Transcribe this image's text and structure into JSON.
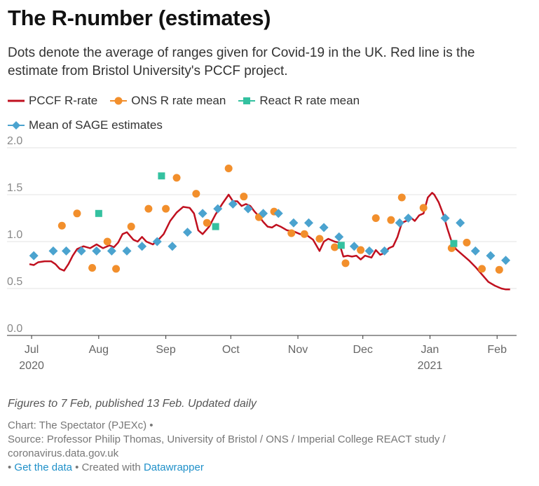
{
  "title": "The R-number (estimates)",
  "subtitle": "Dots denote the average of ranges given for Covid-19 in the UK. Red line is the estimate from Bristol University's PCCF project.",
  "notes": "Figures to 7 Feb, published 13 Feb. Updated daily",
  "footer": {
    "chart_credit": "Chart: The Spectator (PJEXc) •",
    "source": "Source: Professor Philip Thomas, University of Bristol / ONS / Imperial College REACT study / coronavirus.data.gov.uk",
    "bullet1": " • ",
    "get_data": "Get the data",
    "created_with": " • Created with ",
    "datawrapper": "Datawrapper"
  },
  "chart_data": {
    "type": "line",
    "xlim": [
      "2020-06-30",
      "2021-02-10"
    ],
    "ylim": [
      0,
      2.0
    ],
    "grid": true,
    "legend_position": "top",
    "y_ticks": [
      "0.0",
      "0.5",
      "1.0",
      "1.5",
      "2.0"
    ],
    "x_ticks": [
      {
        "date": "2020-07-01",
        "label": "Jul",
        "sublabel": "2020"
      },
      {
        "date": "2020-08-01",
        "label": "Aug",
        "sublabel": ""
      },
      {
        "date": "2020-09-01",
        "label": "Sep",
        "sublabel": ""
      },
      {
        "date": "2020-10-01",
        "label": "Oct",
        "sublabel": ""
      },
      {
        "date": "2020-11-01",
        "label": "Nov",
        "sublabel": ""
      },
      {
        "date": "2020-12-01",
        "label": "Dec",
        "sublabel": ""
      },
      {
        "date": "2021-01-01",
        "label": "Jan",
        "sublabel": "2021"
      },
      {
        "date": "2021-02-01",
        "label": "Feb",
        "sublabel": ""
      }
    ],
    "series": [
      {
        "name": "PCCF R-rate",
        "kind": "line",
        "color": "#c0101f",
        "points": [
          [
            "2020-06-30",
            0.76
          ],
          [
            "2020-07-02",
            0.75
          ],
          [
            "2020-07-04",
            0.78
          ],
          [
            "2020-07-07",
            0.79
          ],
          [
            "2020-07-10",
            0.79
          ],
          [
            "2020-07-12",
            0.76
          ],
          [
            "2020-07-14",
            0.71
          ],
          [
            "2020-07-16",
            0.69
          ],
          [
            "2020-07-18",
            0.76
          ],
          [
            "2020-07-20",
            0.85
          ],
          [
            "2020-07-22",
            0.92
          ],
          [
            "2020-07-25",
            0.95
          ],
          [
            "2020-07-28",
            0.93
          ],
          [
            "2020-07-31",
            0.97
          ],
          [
            "2020-08-03",
            0.93
          ],
          [
            "2020-08-06",
            0.96
          ],
          [
            "2020-08-08",
            0.94
          ],
          [
            "2020-08-10",
            0.99
          ],
          [
            "2020-08-12",
            1.08
          ],
          [
            "2020-08-14",
            1.1
          ],
          [
            "2020-08-17",
            1.02
          ],
          [
            "2020-08-19",
            1.0
          ],
          [
            "2020-08-21",
            1.05
          ],
          [
            "2020-08-23",
            1.0
          ],
          [
            "2020-08-26",
            0.97
          ],
          [
            "2020-08-29",
            1.03
          ],
          [
            "2020-08-31",
            1.08
          ],
          [
            "2020-09-03",
            1.22
          ],
          [
            "2020-09-06",
            1.31
          ],
          [
            "2020-09-09",
            1.37
          ],
          [
            "2020-09-12",
            1.36
          ],
          [
            "2020-09-14",
            1.3
          ],
          [
            "2020-09-16",
            1.12
          ],
          [
            "2020-09-18",
            1.08
          ],
          [
            "2020-09-21",
            1.16
          ],
          [
            "2020-09-24",
            1.29
          ],
          [
            "2020-09-27",
            1.4
          ],
          [
            "2020-09-30",
            1.5
          ],
          [
            "2020-10-02",
            1.43
          ],
          [
            "2020-10-04",
            1.43
          ],
          [
            "2020-10-06",
            1.38
          ],
          [
            "2020-10-08",
            1.4
          ],
          [
            "2020-10-10",
            1.38
          ],
          [
            "2020-10-12",
            1.32
          ],
          [
            "2020-10-14",
            1.27
          ],
          [
            "2020-10-16",
            1.21
          ],
          [
            "2020-10-18",
            1.16
          ],
          [
            "2020-10-20",
            1.15
          ],
          [
            "2020-10-22",
            1.18
          ],
          [
            "2020-10-24",
            1.16
          ],
          [
            "2020-10-27",
            1.12
          ],
          [
            "2020-10-30",
            1.11
          ],
          [
            "2020-11-02",
            1.08
          ],
          [
            "2020-11-05",
            1.07
          ],
          [
            "2020-11-08",
            1.02
          ],
          [
            "2020-11-11",
            0.9
          ],
          [
            "2020-11-13",
            1.0
          ],
          [
            "2020-11-15",
            1.03
          ],
          [
            "2020-11-18",
            1.0
          ],
          [
            "2020-11-20",
            0.99
          ],
          [
            "2020-11-22",
            0.84
          ],
          [
            "2020-11-24",
            0.85
          ],
          [
            "2020-11-26",
            0.84
          ],
          [
            "2020-11-28",
            0.85
          ],
          [
            "2020-11-30",
            0.81
          ],
          [
            "2020-12-02",
            0.85
          ],
          [
            "2020-12-05",
            0.83
          ],
          [
            "2020-12-07",
            0.91
          ],
          [
            "2020-12-09",
            0.86
          ],
          [
            "2020-12-11",
            0.88
          ],
          [
            "2020-12-13",
            0.93
          ],
          [
            "2020-12-15",
            0.95
          ],
          [
            "2020-12-17",
            1.05
          ],
          [
            "2020-12-19",
            1.2
          ],
          [
            "2020-12-21",
            1.22
          ],
          [
            "2020-12-23",
            1.26
          ],
          [
            "2020-12-25",
            1.22
          ],
          [
            "2020-12-27",
            1.28
          ],
          [
            "2020-12-29",
            1.3
          ],
          [
            "2020-12-31",
            1.47
          ],
          [
            "2021-01-02",
            1.52
          ],
          [
            "2021-01-03",
            1.5
          ],
          [
            "2021-01-05",
            1.42
          ],
          [
            "2021-01-07",
            1.3
          ],
          [
            "2021-01-09",
            1.14
          ],
          [
            "2021-01-11",
            1.0
          ],
          [
            "2021-01-13",
            0.92
          ],
          [
            "2021-01-16",
            0.86
          ],
          [
            "2021-01-19",
            0.8
          ],
          [
            "2021-01-22",
            0.73
          ],
          [
            "2021-01-25",
            0.65
          ],
          [
            "2021-01-28",
            0.57
          ],
          [
            "2021-01-31",
            0.53
          ],
          [
            "2021-02-03",
            0.5
          ],
          [
            "2021-02-05",
            0.49
          ],
          [
            "2021-02-07",
            0.49
          ]
        ]
      },
      {
        "name": "ONS R rate mean",
        "kind": "circle",
        "color": "#f28f2c",
        "points": [
          [
            "2020-07-15",
            1.17
          ],
          [
            "2020-07-22",
            1.3
          ],
          [
            "2020-07-29",
            0.72
          ],
          [
            "2020-08-05",
            1.0
          ],
          [
            "2020-08-09",
            0.71
          ],
          [
            "2020-08-16",
            1.16
          ],
          [
            "2020-08-24",
            1.35
          ],
          [
            "2020-09-01",
            1.35
          ],
          [
            "2020-09-06",
            1.68
          ],
          [
            "2020-09-15",
            1.51
          ],
          [
            "2020-09-20",
            1.2
          ],
          [
            "2020-09-30",
            1.78
          ],
          [
            "2020-10-07",
            1.48
          ],
          [
            "2020-10-14",
            1.26
          ],
          [
            "2020-10-21",
            1.32
          ],
          [
            "2020-10-29",
            1.09
          ],
          [
            "2020-11-04",
            1.08
          ],
          [
            "2020-11-11",
            1.03
          ],
          [
            "2020-11-18",
            0.94
          ],
          [
            "2020-11-23",
            0.77
          ],
          [
            "2020-11-30",
            0.91
          ],
          [
            "2020-12-07",
            1.25
          ],
          [
            "2020-12-14",
            1.23
          ],
          [
            "2020-12-19",
            1.47
          ],
          [
            "2020-12-29",
            1.36
          ],
          [
            "2021-01-11",
            0.93
          ],
          [
            "2021-01-18",
            0.99
          ],
          [
            "2021-01-25",
            0.71
          ],
          [
            "2021-02-02",
            0.7
          ]
        ]
      },
      {
        "name": "React R rate mean",
        "kind": "square",
        "color": "#34c1a0",
        "points": [
          [
            "2020-08-01",
            1.3
          ],
          [
            "2020-08-30",
            1.7
          ],
          [
            "2020-09-24",
            1.16
          ],
          [
            "2020-11-21",
            0.96
          ],
          [
            "2021-01-12",
            0.98
          ]
        ]
      },
      {
        "name": "Mean of SAGE estimates",
        "kind": "diamond",
        "color": "#4ba3cf",
        "points": [
          [
            "2020-07-02",
            0.85
          ],
          [
            "2020-07-11",
            0.9
          ],
          [
            "2020-07-17",
            0.9
          ],
          [
            "2020-07-24",
            0.9
          ],
          [
            "2020-07-31",
            0.9
          ],
          [
            "2020-08-07",
            0.9
          ],
          [
            "2020-08-14",
            0.9
          ],
          [
            "2020-08-21",
            0.95
          ],
          [
            "2020-08-28",
            1.0
          ],
          [
            "2020-09-04",
            0.95
          ],
          [
            "2020-09-11",
            1.1
          ],
          [
            "2020-09-18",
            1.3
          ],
          [
            "2020-09-25",
            1.35
          ],
          [
            "2020-10-02",
            1.4
          ],
          [
            "2020-10-09",
            1.35
          ],
          [
            "2020-10-16",
            1.3
          ],
          [
            "2020-10-23",
            1.3
          ],
          [
            "2020-10-30",
            1.2
          ],
          [
            "2020-11-06",
            1.2
          ],
          [
            "2020-11-13",
            1.15
          ],
          [
            "2020-11-20",
            1.05
          ],
          [
            "2020-11-27",
            0.95
          ],
          [
            "2020-12-04",
            0.9
          ],
          [
            "2020-12-11",
            0.9
          ],
          [
            "2020-12-18",
            1.2
          ],
          [
            "2020-12-22",
            1.25
          ],
          [
            "2021-01-08",
            1.25
          ],
          [
            "2021-01-15",
            1.2
          ],
          [
            "2021-01-22",
            0.9
          ],
          [
            "2021-01-29",
            0.85
          ],
          [
            "2021-02-05",
            0.8
          ]
        ]
      }
    ]
  }
}
